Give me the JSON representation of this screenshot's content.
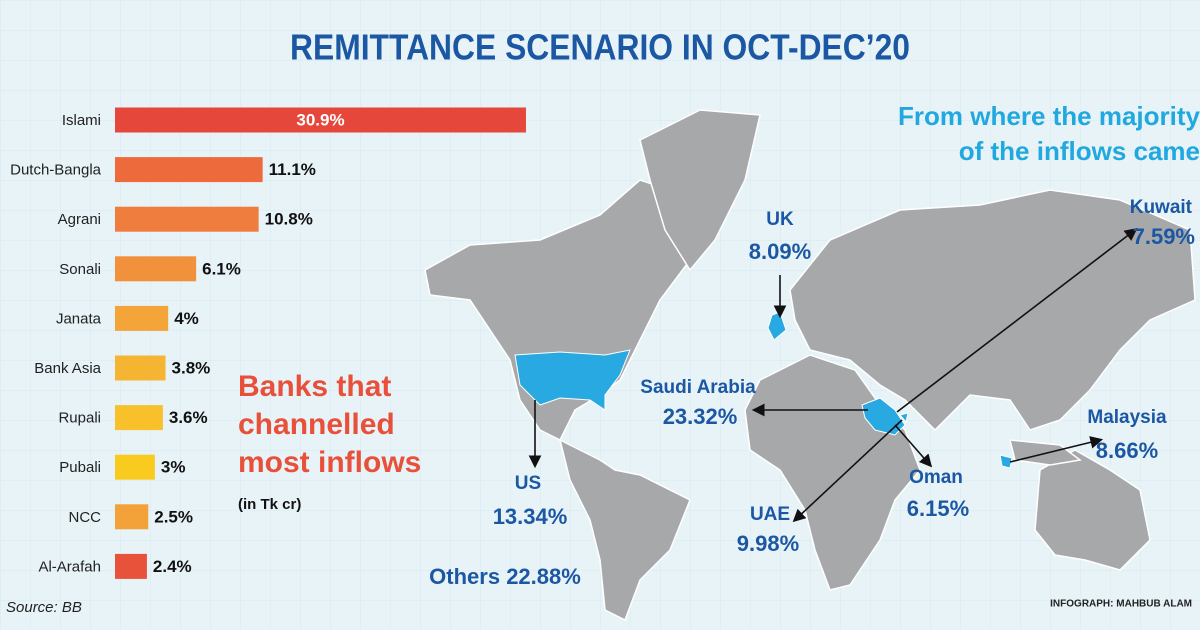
{
  "title": "REMITTANCE SCENARIO IN OCT-DEC’20",
  "chart_data": {
    "type": "bar",
    "orientation": "horizontal",
    "subtitle_lines": [
      "Banks that",
      "channelled",
      "most inflows"
    ],
    "note": "(in Tk cr)",
    "categories": [
      "Islami",
      "Dutch-Bangla",
      "Agrani",
      "Sonali",
      "Janata",
      "Bank Asia",
      "Rupali",
      "Pubali",
      "NCC",
      "Al-Arafah"
    ],
    "values": [
      30.9,
      11.1,
      10.8,
      6.1,
      4,
      3.8,
      3.6,
      3,
      2.5,
      2.4
    ],
    "value_labels": [
      "30.9%",
      "11.1%",
      "10.8%",
      "6.1%",
      "4%",
      "3.8%",
      "3.6%",
      "3%",
      "2.5%",
      "2.4%"
    ],
    "colors": [
      "#e5473a",
      "#ec6a3b",
      "#ef7d3d",
      "#f1913b",
      "#f4a53a",
      "#f6b433",
      "#f8c12c",
      "#f9cb1e",
      "#f3a23a",
      "#e8523a"
    ],
    "source": "Source: BB"
  },
  "map": {
    "title_lines": [
      "From where the majority",
      "of the inflows came"
    ],
    "regions": [
      {
        "name": "UK",
        "share": "8.09%"
      },
      {
        "name": "Kuwait",
        "share": "7.59%"
      },
      {
        "name": "Saudi Arabia",
        "share": "23.32%"
      },
      {
        "name": "Malaysia",
        "share": "8.66%"
      },
      {
        "name": "US",
        "share": "13.34%"
      },
      {
        "name": "Oman",
        "share": "6.15%"
      },
      {
        "name": "UAE",
        "share": "9.98%"
      }
    ],
    "others": "Others 22.88%"
  },
  "credit": "INFOGRAPH: MAHBUB ALAM"
}
